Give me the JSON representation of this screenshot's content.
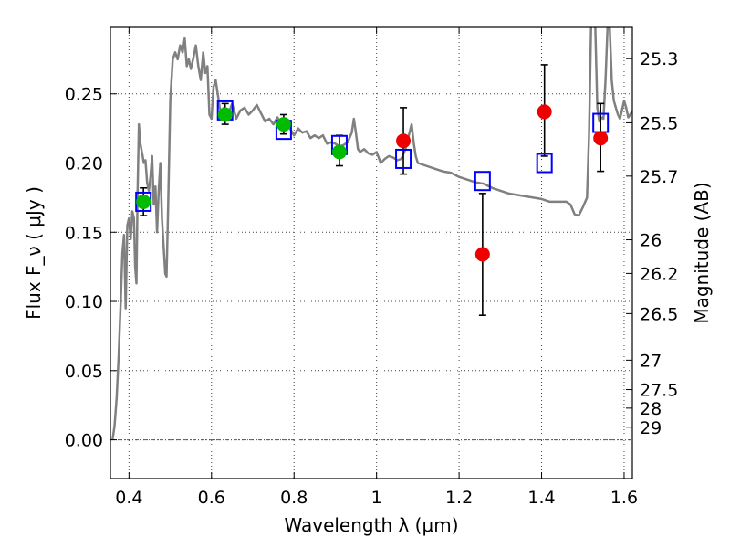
{
  "chart_data": {
    "type": "line",
    "xlabel": "Wavelength  λ (μm)",
    "ylabel": "Flux  F_ν  ( μJy )",
    "ylabel_right": "Magnitude (AB)",
    "xlim": [
      0.355,
      1.62
    ],
    "ylim": [
      -0.028,
      0.298
    ],
    "grid": true,
    "x_ticks": [
      {
        "value": 0.4,
        "label": "0.4"
      },
      {
        "value": 0.6,
        "label": "0.6"
      },
      {
        "value": 0.8,
        "label": "0.8"
      },
      {
        "value": 1.0,
        "label": "1"
      },
      {
        "value": 1.2,
        "label": "1.2"
      },
      {
        "value": 1.4,
        "label": "1.4"
      },
      {
        "value": 1.6,
        "label": "1.6"
      }
    ],
    "y_ticks": [
      {
        "value": 0.0,
        "label": "0.00"
      },
      {
        "value": 0.05,
        "label": "0.05"
      },
      {
        "value": 0.1,
        "label": "0.10"
      },
      {
        "value": 0.15,
        "label": "0.15"
      },
      {
        "value": 0.2,
        "label": "0.20"
      },
      {
        "value": 0.25,
        "label": "0.25"
      }
    ],
    "mag_ticks": [
      {
        "value": 25.3,
        "label": "25.3"
      },
      {
        "value": 25.5,
        "label": "25.5"
      },
      {
        "value": 25.7,
        "label": "25.7"
      },
      {
        "value": 26.0,
        "label": "26"
      },
      {
        "value": 26.2,
        "label": "26.2"
      },
      {
        "value": 26.5,
        "label": "26.5"
      },
      {
        "value": 27.0,
        "label": "27"
      },
      {
        "value": 27.5,
        "label": "27.5"
      },
      {
        "value": 28.0,
        "label": "28"
      },
      {
        "value": 29.0,
        "label": "29"
      }
    ],
    "series": [
      {
        "kind": "line",
        "color": "#808080",
        "points": [
          [
            0.36,
            0.0
          ],
          [
            0.365,
            0.01
          ],
          [
            0.37,
            0.03
          ],
          [
            0.375,
            0.06
          ],
          [
            0.38,
            0.1
          ],
          [
            0.384,
            0.135
          ],
          [
            0.388,
            0.148
          ],
          [
            0.392,
            0.095
          ],
          [
            0.396,
            0.155
          ],
          [
            0.4,
            0.16
          ],
          [
            0.404,
            0.145
          ],
          [
            0.408,
            0.165
          ],
          [
            0.412,
            0.16
          ],
          [
            0.415,
            0.125
          ],
          [
            0.418,
            0.113
          ],
          [
            0.421,
            0.18
          ],
          [
            0.424,
            0.228
          ],
          [
            0.427,
            0.215
          ],
          [
            0.43,
            0.21
          ],
          [
            0.433,
            0.205
          ],
          [
            0.436,
            0.2
          ],
          [
            0.44,
            0.202
          ],
          [
            0.444,
            0.186
          ],
          [
            0.448,
            0.18
          ],
          [
            0.452,
            0.19
          ],
          [
            0.456,
            0.205
          ],
          [
            0.46,
            0.17
          ],
          [
            0.464,
            0.183
          ],
          [
            0.468,
            0.15
          ],
          [
            0.472,
            0.18
          ],
          [
            0.476,
            0.2
          ],
          [
            0.48,
            0.16
          ],
          [
            0.484,
            0.14
          ],
          [
            0.488,
            0.12
          ],
          [
            0.491,
            0.118
          ],
          [
            0.495,
            0.17
          ],
          [
            0.5,
            0.245
          ],
          [
            0.506,
            0.275
          ],
          [
            0.512,
            0.28
          ],
          [
            0.518,
            0.275
          ],
          [
            0.524,
            0.285
          ],
          [
            0.53,
            0.28
          ],
          [
            0.535,
            0.29
          ],
          [
            0.54,
            0.27
          ],
          [
            0.545,
            0.275
          ],
          [
            0.55,
            0.268
          ],
          [
            0.556,
            0.276
          ],
          [
            0.562,
            0.285
          ],
          [
            0.568,
            0.27
          ],
          [
            0.574,
            0.26
          ],
          [
            0.58,
            0.28
          ],
          [
            0.585,
            0.265
          ],
          [
            0.59,
            0.27
          ],
          [
            0.595,
            0.235
          ],
          [
            0.6,
            0.232
          ],
          [
            0.605,
            0.255
          ],
          [
            0.61,
            0.26
          ],
          [
            0.615,
            0.25
          ],
          [
            0.62,
            0.24
          ],
          [
            0.625,
            0.235
          ],
          [
            0.63,
            0.24
          ],
          [
            0.64,
            0.235
          ],
          [
            0.65,
            0.243
          ],
          [
            0.66,
            0.232
          ],
          [
            0.67,
            0.238
          ],
          [
            0.68,
            0.24
          ],
          [
            0.69,
            0.235
          ],
          [
            0.7,
            0.238
          ],
          [
            0.71,
            0.242
          ],
          [
            0.72,
            0.236
          ],
          [
            0.73,
            0.23
          ],
          [
            0.74,
            0.232
          ],
          [
            0.75,
            0.228
          ],
          [
            0.76,
            0.233
          ],
          [
            0.77,
            0.226
          ],
          [
            0.78,
            0.232
          ],
          [
            0.79,
            0.225
          ],
          [
            0.8,
            0.22
          ],
          [
            0.81,
            0.225
          ],
          [
            0.82,
            0.222
          ],
          [
            0.83,
            0.223
          ],
          [
            0.84,
            0.218
          ],
          [
            0.85,
            0.22
          ],
          [
            0.86,
            0.218
          ],
          [
            0.87,
            0.22
          ],
          [
            0.88,
            0.214
          ],
          [
            0.89,
            0.215
          ],
          [
            0.9,
            0.214
          ],
          [
            0.91,
            0.212
          ],
          [
            0.92,
            0.213
          ],
          [
            0.93,
            0.215
          ],
          [
            0.94,
            0.222
          ],
          [
            0.945,
            0.232
          ],
          [
            0.95,
            0.222
          ],
          [
            0.955,
            0.21
          ],
          [
            0.96,
            0.208
          ],
          [
            0.97,
            0.21
          ],
          [
            0.98,
            0.207
          ],
          [
            0.99,
            0.206
          ],
          [
            1.0,
            0.208
          ],
          [
            1.01,
            0.2
          ],
          [
            1.02,
            0.203
          ],
          [
            1.03,
            0.205
          ],
          [
            1.04,
            0.204
          ],
          [
            1.05,
            0.202
          ],
          [
            1.06,
            0.203
          ],
          [
            1.07,
            0.21
          ],
          [
            1.08,
            0.222
          ],
          [
            1.085,
            0.228
          ],
          [
            1.09,
            0.215
          ],
          [
            1.095,
            0.205
          ],
          [
            1.1,
            0.2
          ],
          [
            1.12,
            0.198
          ],
          [
            1.14,
            0.196
          ],
          [
            1.16,
            0.194
          ],
          [
            1.18,
            0.193
          ],
          [
            1.2,
            0.19
          ],
          [
            1.22,
            0.188
          ],
          [
            1.24,
            0.186
          ],
          [
            1.26,
            0.185
          ],
          [
            1.28,
            0.182
          ],
          [
            1.3,
            0.18
          ],
          [
            1.32,
            0.178
          ],
          [
            1.34,
            0.177
          ],
          [
            1.36,
            0.176
          ],
          [
            1.38,
            0.175
          ],
          [
            1.4,
            0.174
          ],
          [
            1.42,
            0.172
          ],
          [
            1.44,
            0.172
          ],
          [
            1.46,
            0.172
          ],
          [
            1.47,
            0.17
          ],
          [
            1.48,
            0.163
          ],
          [
            1.49,
            0.162
          ],
          [
            1.5,
            0.168
          ],
          [
            1.51,
            0.175
          ],
          [
            1.515,
            0.22
          ],
          [
            1.52,
            0.3
          ],
          [
            1.53,
            0.3
          ],
          [
            1.535,
            0.24
          ],
          [
            1.54,
            0.23
          ],
          [
            1.545,
            0.233
          ],
          [
            1.55,
            0.232
          ],
          [
            1.555,
            0.26
          ],
          [
            1.56,
            0.3
          ],
          [
            1.565,
            0.3
          ],
          [
            1.57,
            0.26
          ],
          [
            1.575,
            0.245
          ],
          [
            1.58,
            0.24
          ],
          [
            1.585,
            0.235
          ],
          [
            1.59,
            0.232
          ],
          [
            1.6,
            0.245
          ],
          [
            1.605,
            0.24
          ],
          [
            1.61,
            0.233
          ],
          [
            1.615,
            0.235
          ],
          [
            1.62,
            0.238
          ]
        ]
      },
      {
        "kind": "errorbar",
        "color": "#000000",
        "bars": [
          [
            0.435,
            0.162,
            0.182
          ],
          [
            0.633,
            0.228,
            0.243
          ],
          [
            0.775,
            0.221,
            0.235
          ],
          [
            0.91,
            0.198,
            0.22
          ],
          [
            1.065,
            0.192,
            0.24
          ],
          [
            1.257,
            0.09,
            0.178
          ],
          [
            1.407,
            0.205,
            0.271
          ],
          [
            1.543,
            0.194,
            0.243
          ]
        ]
      },
      {
        "kind": "square",
        "color": "#0000ff",
        "points": [
          [
            0.435,
            0.172
          ],
          [
            0.633,
            0.238
          ],
          [
            0.775,
            0.224
          ],
          [
            0.91,
            0.213
          ],
          [
            1.065,
            0.203
          ],
          [
            1.257,
            0.187
          ],
          [
            1.407,
            0.2
          ],
          [
            1.543,
            0.229
          ]
        ]
      },
      {
        "kind": "circle",
        "color": "#00bb00",
        "points": [
          [
            0.435,
            0.172
          ],
          [
            0.633,
            0.235
          ],
          [
            0.775,
            0.228
          ],
          [
            0.91,
            0.208
          ]
        ]
      },
      {
        "kind": "circle",
        "color": "#ee0000",
        "points": [
          [
            1.065,
            0.216
          ],
          [
            1.257,
            0.134
          ],
          [
            1.407,
            0.237
          ],
          [
            1.543,
            0.218
          ]
        ]
      }
    ],
    "hline": 0.0
  }
}
